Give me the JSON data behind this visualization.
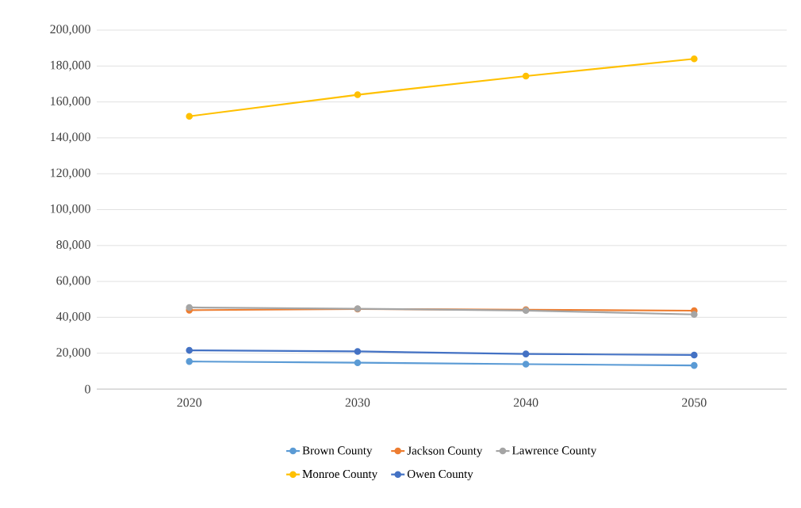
{
  "chart_data": {
    "type": "line",
    "categories": [
      "2020",
      "2030",
      "2040",
      "2050"
    ],
    "series": [
      {
        "name": "Brown County",
        "color": "#5b9bd5",
        "values": [
          15400,
          14700,
          13900,
          13200
        ]
      },
      {
        "name": "Jackson County",
        "color": "#ed7d31",
        "values": [
          44000,
          44600,
          44200,
          43700
        ]
      },
      {
        "name": "Lawrence County",
        "color": "#a5a5a5",
        "values": [
          45500,
          44800,
          43800,
          41600
        ]
      },
      {
        "name": "Monroe County",
        "color": "#ffc000",
        "values": [
          152000,
          164000,
          174400,
          184000
        ]
      },
      {
        "name": "Owen County",
        "color": "#4472c4",
        "values": [
          21600,
          21000,
          19600,
          19000
        ]
      }
    ],
    "ylim": [
      0,
      200000
    ],
    "yticks": [
      {
        "value": 0,
        "label": "0"
      },
      {
        "value": 20000,
        "label": "20,000"
      },
      {
        "value": 40000,
        "label": "40,000"
      },
      {
        "value": 60000,
        "label": "60,000"
      },
      {
        "value": 80000,
        "label": "80,000"
      },
      {
        "value": 100000,
        "label": "100,000"
      },
      {
        "value": 120000,
        "label": "120,000"
      },
      {
        "value": 140000,
        "label": "140,000"
      },
      {
        "value": 160000,
        "label": "160,000"
      },
      {
        "value": 180000,
        "label": "180,000"
      },
      {
        "value": 200000,
        "label": "200,000"
      }
    ],
    "grid": "y",
    "legend": "bottom",
    "marker": "circle",
    "line_style": "solid"
  }
}
